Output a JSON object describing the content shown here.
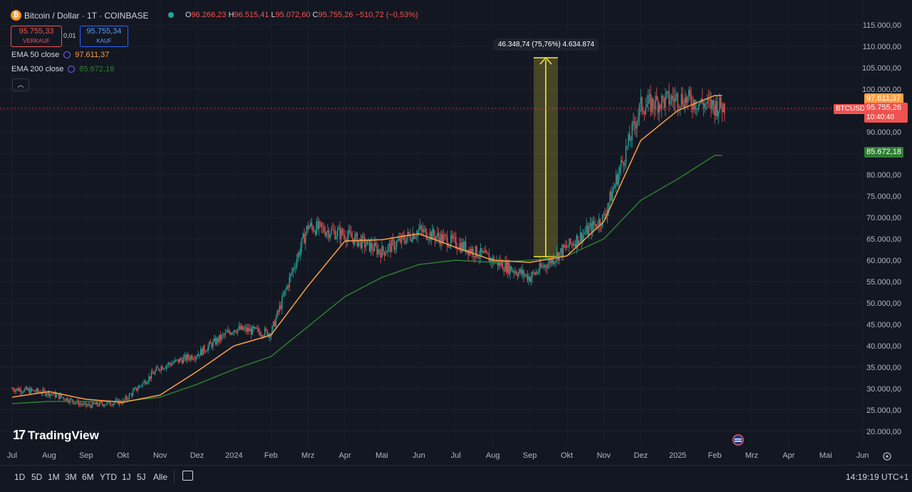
{
  "header": {
    "symbol_title": "Bitcoin / Dollar · 1T · COINBASE",
    "ohlc": {
      "o_label": "O",
      "o_value": "96.266,23",
      "h_label": "H",
      "h_value": "96.515,41",
      "l_label": "L",
      "l_value": "95.072,60",
      "c_label": "C",
      "c_value": "95.755,26",
      "change": "−510,72 (−0,53%)"
    },
    "sell": {
      "price": "95.755,33",
      "label": "VERKAUF"
    },
    "spread": "0,01",
    "buy": {
      "price": "95.755,34",
      "label": "KAUF"
    },
    "ema50": {
      "label": "EMA 50 close",
      "value": "97.611,37"
    },
    "ema200": {
      "label": "EMA 200 close",
      "value": "85.672,18"
    },
    "collapse_icon": "chevron-up-icon"
  },
  "measure": {
    "label": "46.348,74 (75,76%) 4.634.874"
  },
  "price_axis": {
    "labels": [
      "115.000,00",
      "110.000,00",
      "105.000,00",
      "100.000,00",
      "95.000,00",
      "90.000,00",
      "85.000,00",
      "80.000,00",
      "75.000,00",
      "70.000,00",
      "65.000,00",
      "60.000,00",
      "55.000,00",
      "50.000,00",
      "45.000,00",
      "40.000,00",
      "35.000,00",
      "30.000,00",
      "25.000,00",
      "20.000,00"
    ],
    "ema50_tag": "97.611,37",
    "btc_tag_symbol": "BTCUSD",
    "btc_tag_price": "95.755,26",
    "btc_tag_countdown": "10:40:40",
    "ema200_tag": "85.672,18"
  },
  "time_axis": {
    "labels": [
      "Jul",
      "Aug",
      "Sep",
      "Okt",
      "Nov",
      "Dez",
      "2024",
      "Feb",
      "Mrz",
      "Apr",
      "Mai",
      "Jun",
      "Jul",
      "Aug",
      "Sep",
      "Okt",
      "Nov",
      "Dez",
      "2025",
      "Feb",
      "Mrz",
      "Apr",
      "Mai",
      "Jun"
    ]
  },
  "branding": {
    "logo_text": "TradingView"
  },
  "bottom_bar": {
    "ranges": [
      "1D",
      "5D",
      "1M",
      "3M",
      "6M",
      "YTD",
      "1J",
      "5J",
      "Alle"
    ],
    "clock": "14:19:19 UTC+1"
  },
  "colors": {
    "background": "#131722",
    "up": "#26a69a",
    "down": "#ef5350",
    "ema50": "#ff9f43",
    "ema200": "#2e7d32",
    "measure": "#ffeb3b"
  },
  "chart_data": {
    "type": "candlestick",
    "series": [
      {
        "name": "EMA 50 close",
        "x": [
          "Jul",
          "Aug",
          "Sep",
          "Okt",
          "Nov",
          "Dez",
          "2024",
          "Feb",
          "Mrz",
          "Apr",
          "Mai",
          "Jun",
          "Jul",
          "Aug",
          "Sep",
          "Okt",
          "Nov",
          "Dez",
          "2025",
          "Feb"
        ],
        "values": [
          28000,
          29300,
          27500,
          26800,
          28500,
          34000,
          40000,
          42500,
          54000,
          64500,
          64800,
          66200,
          63000,
          60000,
          59500,
          61000,
          69000,
          88000,
          95000,
          98500
        ]
      },
      {
        "name": "EMA 200 close",
        "x": [
          "Jul",
          "Aug",
          "Sep",
          "Okt",
          "Nov",
          "Dez",
          "2024",
          "Feb",
          "Mrz",
          "Apr",
          "Mai",
          "Jun",
          "Jul",
          "Aug",
          "Sep",
          "Okt",
          "Nov",
          "Dez",
          "2025",
          "Feb"
        ],
        "values": [
          26500,
          27000,
          27000,
          27000,
          28000,
          31000,
          34500,
          37500,
          44500,
          51500,
          56000,
          59000,
          60000,
          59500,
          60000,
          61000,
          65000,
          74000,
          79000,
          84500
        ]
      }
    ],
    "close_approx": {
      "x": [
        "Jul",
        "Aug",
        "Sep",
        "Okt",
        "Nov",
        "Dez",
        "2024",
        "Feb",
        "Mrz",
        "Apr",
        "Mai",
        "Jun",
        "Jul",
        "Aug",
        "Sep",
        "Okt",
        "Nov",
        "Dez",
        "2025",
        "Feb"
      ],
      "values": [
        30000,
        29000,
        26000,
        27000,
        35000,
        38000,
        44000,
        43000,
        68000,
        66000,
        62000,
        67000,
        64000,
        60000,
        56000,
        63000,
        70000,
        96000,
        98000,
        96000
      ]
    },
    "ylim": [
      20000,
      115000
    ],
    "measure_range": {
      "from": 61000,
      "to": 107300,
      "change": "46.348,74",
      "percent": "75,76%"
    },
    "legend": "top-left"
  }
}
